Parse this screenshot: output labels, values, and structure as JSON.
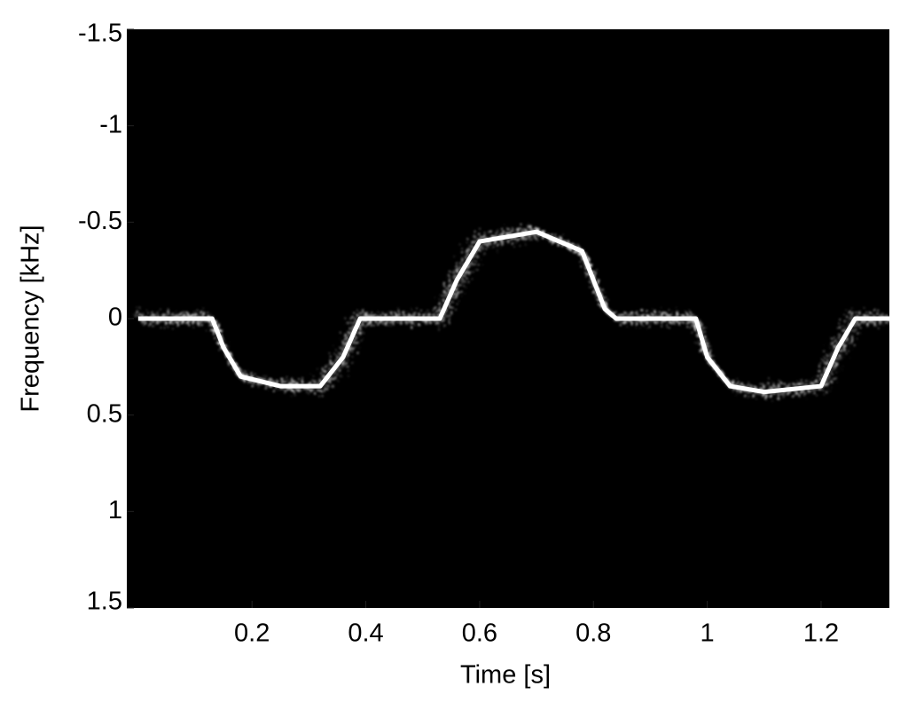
{
  "chart_data": {
    "type": "line",
    "xlabel": "Time [s]",
    "ylabel": "Frequency [kHz]",
    "x": [
      0,
      0.13,
      0.15,
      0.18,
      0.25,
      0.32,
      0.36,
      0.39,
      0.53,
      0.56,
      0.6,
      0.7,
      0.78,
      0.82,
      0.84,
      0.98,
      1.0,
      1.04,
      1.1,
      1.2,
      1.23,
      1.26,
      1.32
    ],
    "series": [
      {
        "color": "#ffffff",
        "values": [
          0,
          0,
          0.15,
          0.3,
          0.35,
          0.35,
          0.2,
          0,
          0,
          -0.2,
          -0.4,
          -0.45,
          -0.35,
          -0.05,
          0,
          0,
          0.2,
          0.35,
          0.38,
          0.35,
          0.15,
          0,
          0
        ]
      }
    ],
    "xlim": [
      -0.02,
      1.32
    ],
    "xticks": [
      0.2,
      0.4,
      0.6,
      0.8,
      1,
      1.2
    ],
    "ylim": [
      -1.5,
      1.5
    ],
    "yticks": [
      -1.5,
      -1,
      -0.5,
      0,
      0.5,
      1,
      1.5
    ],
    "y_inverted": true,
    "background": "#000000",
    "grid": false
  }
}
